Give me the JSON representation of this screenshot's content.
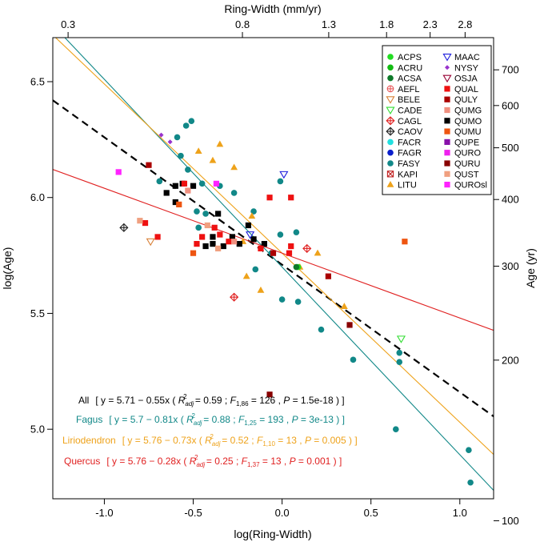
{
  "chart_data": {
    "type": "scatter",
    "xlabel": "log(Ring-Width)",
    "ylabel": "log(Age)",
    "top_axis_label": "Ring-Width (mm/yr)",
    "right_axis_label": "Age (yr)",
    "xlim": [
      -1.29,
      1.19
    ],
    "ylim": [
      4.7,
      6.69
    ],
    "x_ticks": [
      "-1.0",
      "-0.5",
      "0.0",
      "0.5",
      "1.0"
    ],
    "y_ticks": [
      "5.0",
      "5.5",
      "6.0",
      "6.5"
    ],
    "top_ticks": [
      "0.3",
      "0.8",
      "1.3",
      "1.8",
      "2.3",
      "2.8"
    ],
    "right_ticks": [
      "100",
      "200",
      "300",
      "400",
      "500",
      "600",
      "700"
    ],
    "legend_position": "top-right",
    "legend": [
      {
        "code": "ACPS",
        "color": "#22DD22",
        "marker": "circle"
      },
      {
        "code": "ACRU",
        "color": "#12BB12",
        "marker": "circle"
      },
      {
        "code": "ACSA",
        "color": "#0E7A2A",
        "marker": "circle"
      },
      {
        "code": "AEFL",
        "color": "#E8585A",
        "marker": "circle-plus"
      },
      {
        "code": "BELE",
        "color": "#D9823A",
        "marker": "triangle-down-open"
      },
      {
        "code": "CADE",
        "color": "#33DD33",
        "marker": "triangle-down-open"
      },
      {
        "code": "CAGL",
        "color": "#E02020",
        "marker": "diamond-plus"
      },
      {
        "code": "CAOV",
        "color": "#222222",
        "marker": "diamond-plus"
      },
      {
        "code": "FACR",
        "color": "#22E0E0",
        "marker": "circle"
      },
      {
        "code": "FAGR",
        "color": "#0A1ECC",
        "marker": "circle"
      },
      {
        "code": "FASY",
        "color": "#118888",
        "marker": "circle"
      },
      {
        "code": "KAPI",
        "color": "#C02020",
        "marker": "square-x"
      },
      {
        "code": "LITU",
        "color": "#EEA21A",
        "marker": "triangle"
      },
      {
        "code": "MAAC",
        "color": "#1C1CDD",
        "marker": "triangle-down-open"
      },
      {
        "code": "NYSY",
        "color": "#9933CC",
        "marker": "diamond"
      },
      {
        "code": "OSJA",
        "color": "#990033",
        "marker": "triangle-down-open"
      },
      {
        "code": "QUAL",
        "color": "#EE1111",
        "marker": "square"
      },
      {
        "code": "QULY",
        "color": "#AA0000",
        "marker": "square"
      },
      {
        "code": "QUMG",
        "color": "#F09080",
        "marker": "square"
      },
      {
        "code": "QUMO",
        "color": "#000000",
        "marker": "square"
      },
      {
        "code": "QUMU",
        "color": "#EE5511",
        "marker": "square"
      },
      {
        "code": "QUPE",
        "color": "#8811AA",
        "marker": "square"
      },
      {
        "code": "QURO",
        "color": "#EE22EE",
        "marker": "square"
      },
      {
        "code": "QURU",
        "color": "#880000",
        "marker": "square"
      },
      {
        "code": "QUST",
        "color": "#F0A080",
        "marker": "square"
      },
      {
        "code": "QUROsl",
        "color": "#FF22FF",
        "marker": "square"
      }
    ],
    "fits": [
      {
        "name": "All",
        "intercept": 5.71,
        "slope": -0.55,
        "color": "#000000",
        "dash": true,
        "eq": "y = 5.71 − 0.55x",
        "r2": "0.59",
        "df": "1,86",
        "f": "126",
        "p": "1.5e-18"
      },
      {
        "name": "Fagus",
        "intercept": 5.7,
        "slope": -0.81,
        "color": "#118888",
        "dash": false,
        "eq": "y = 5.7 − 0.81x",
        "r2": "0.88",
        "df": "1,25",
        "f": "193",
        "p": "3e-13"
      },
      {
        "name": "Liriodendron",
        "intercept": 5.76,
        "slope": -0.73,
        "color": "#EEA21A",
        "dash": false,
        "eq": "y = 5.76 − 0.73x",
        "r2": "0.52",
        "df": "1,10",
        "f": "13",
        "p": "0.005"
      },
      {
        "name": "Quercus",
        "intercept": 5.76,
        "slope": -0.28,
        "color": "#E02020",
        "dash": false,
        "eq": "y = 5.76 − 0.28x",
        "r2": "0.25",
        "df": "1,37",
        "f": "13",
        "p": "0.001"
      }
    ],
    "points": [
      {
        "sp": "FASY",
        "x": -0.51,
        "y": 6.33
      },
      {
        "sp": "FASY",
        "x": -0.54,
        "y": 6.31
      },
      {
        "sp": "FASY",
        "x": -0.59,
        "y": 6.26
      },
      {
        "sp": "FASY",
        "x": -0.57,
        "y": 6.18
      },
      {
        "sp": "FASY",
        "x": -0.53,
        "y": 6.12
      },
      {
        "sp": "FASY",
        "x": -0.45,
        "y": 6.06
      },
      {
        "sp": "FASY",
        "x": -0.35,
        "y": 6.05
      },
      {
        "sp": "FASY",
        "x": -0.27,
        "y": 6.02
      },
      {
        "sp": "FASY",
        "x": -0.48,
        "y": 5.94
      },
      {
        "sp": "FASY",
        "x": -0.43,
        "y": 5.93
      },
      {
        "sp": "FASY",
        "x": -0.47,
        "y": 5.87
      },
      {
        "sp": "FASY",
        "x": -0.16,
        "y": 5.94
      },
      {
        "sp": "FASY",
        "x": -0.01,
        "y": 6.07
      },
      {
        "sp": "FASY",
        "x": -0.69,
        "y": 6.07
      },
      {
        "sp": "FASY",
        "x": -0.01,
        "y": 5.84
      },
      {
        "sp": "FASY",
        "x": 0.08,
        "y": 5.85
      },
      {
        "sp": "FASY",
        "x": -0.06,
        "y": 5.76
      },
      {
        "sp": "FASY",
        "x": -0.15,
        "y": 5.69
      },
      {
        "sp": "FASY",
        "x": 0.0,
        "y": 5.56
      },
      {
        "sp": "FASY",
        "x": 0.09,
        "y": 5.55
      },
      {
        "sp": "FASY",
        "x": 0.22,
        "y": 5.43
      },
      {
        "sp": "FASY",
        "x": 0.4,
        "y": 5.3
      },
      {
        "sp": "FASY",
        "x": 0.66,
        "y": 5.33
      },
      {
        "sp": "FASY",
        "x": 0.66,
        "y": 5.29
      },
      {
        "sp": "FASY",
        "x": 0.64,
        "y": 5.0
      },
      {
        "sp": "FASY",
        "x": 1.05,
        "y": 4.91
      },
      {
        "sp": "FASY",
        "x": 1.06,
        "y": 4.77
      },
      {
        "sp": "LITU",
        "x": -0.47,
        "y": 6.2
      },
      {
        "sp": "LITU",
        "x": -0.35,
        "y": 6.23
      },
      {
        "sp": "LITU",
        "x": -0.39,
        "y": 6.16
      },
      {
        "sp": "LITU",
        "x": -0.27,
        "y": 6.13
      },
      {
        "sp": "LITU",
        "x": -0.17,
        "y": 5.92
      },
      {
        "sp": "LITU",
        "x": -0.2,
        "y": 5.66
      },
      {
        "sp": "LITU",
        "x": -0.12,
        "y": 5.6
      },
      {
        "sp": "LITU",
        "x": 0.1,
        "y": 5.7
      },
      {
        "sp": "LITU",
        "x": 0.2,
        "y": 5.76
      },
      {
        "sp": "LITU",
        "x": 0.35,
        "y": 5.53
      },
      {
        "sp": "LITU",
        "x": -0.22,
        "y": 5.81
      },
      {
        "sp": "QUMO",
        "x": -0.65,
        "y": 6.02
      },
      {
        "sp": "QUMO",
        "x": -0.6,
        "y": 6.05
      },
      {
        "sp": "QUMO",
        "x": -0.56,
        "y": 6.06
      },
      {
        "sp": "QUMO",
        "x": -0.5,
        "y": 6.05
      },
      {
        "sp": "QUMO",
        "x": -0.6,
        "y": 5.98
      },
      {
        "sp": "QUMO",
        "x": -0.36,
        "y": 5.93
      },
      {
        "sp": "QUMO",
        "x": -0.39,
        "y": 5.83
      },
      {
        "sp": "QUMO",
        "x": -0.39,
        "y": 5.8
      },
      {
        "sp": "QUMO",
        "x": -0.43,
        "y": 5.79
      },
      {
        "sp": "QUMO",
        "x": -0.33,
        "y": 5.79
      },
      {
        "sp": "QUMO",
        "x": -0.28,
        "y": 5.83
      },
      {
        "sp": "QUMO",
        "x": -0.24,
        "y": 5.8
      },
      {
        "sp": "QUMO",
        "x": -0.19,
        "y": 5.88
      },
      {
        "sp": "QUMO",
        "x": -0.16,
        "y": 5.82
      },
      {
        "sp": "QUMO",
        "x": -0.1,
        "y": 5.8
      },
      {
        "sp": "QUAL",
        "x": -0.77,
        "y": 5.89
      },
      {
        "sp": "QUAL",
        "x": -0.7,
        "y": 5.83
      },
      {
        "sp": "QUAL",
        "x": -0.55,
        "y": 6.06
      },
      {
        "sp": "QUAL",
        "x": -0.48,
        "y": 5.8
      },
      {
        "sp": "QUAL",
        "x": -0.45,
        "y": 5.83
      },
      {
        "sp": "QUAL",
        "x": -0.38,
        "y": 5.87
      },
      {
        "sp": "QUAL",
        "x": -0.35,
        "y": 5.84
      },
      {
        "sp": "QUAL",
        "x": -0.3,
        "y": 5.81
      },
      {
        "sp": "QUAL",
        "x": -0.07,
        "y": 6.0
      },
      {
        "sp": "QUAL",
        "x": 0.05,
        "y": 6.0
      },
      {
        "sp": "QUAL",
        "x": 0.05,
        "y": 5.79
      },
      {
        "sp": "QUAL",
        "x": 0.04,
        "y": 5.76
      },
      {
        "sp": "QUAL",
        "x": -0.12,
        "y": 5.78
      },
      {
        "sp": "QUMU",
        "x": -0.5,
        "y": 5.76
      },
      {
        "sp": "QUMU",
        "x": -0.58,
        "y": 5.97
      },
      {
        "sp": "QUMU",
        "x": 0.69,
        "y": 5.81
      },
      {
        "sp": "QULY",
        "x": -0.75,
        "y": 6.14
      },
      {
        "sp": "QULY",
        "x": -0.05,
        "y": 5.76
      },
      {
        "sp": "QULY",
        "x": 0.26,
        "y": 5.66
      },
      {
        "sp": "QURU",
        "x": -0.07,
        "y": 5.15
      },
      {
        "sp": "QURU",
        "x": 0.38,
        "y": 5.45
      },
      {
        "sp": "QUMG",
        "x": -0.53,
        "y": 6.03
      },
      {
        "sp": "QUMG",
        "x": -0.27,
        "y": 5.81
      },
      {
        "sp": "QUST",
        "x": -0.42,
        "y": 5.88
      },
      {
        "sp": "QUST",
        "x": -0.36,
        "y": 5.78
      },
      {
        "sp": "QUST",
        "x": -0.8,
        "y": 5.9
      },
      {
        "sp": "QUROsl",
        "x": -0.92,
        "y": 6.11
      },
      {
        "sp": "QUROsl",
        "x": -0.37,
        "y": 6.06
      },
      {
        "sp": "NYSY",
        "x": -0.68,
        "y": 6.27
      },
      {
        "sp": "NYSY",
        "x": -0.63,
        "y": 6.24
      },
      {
        "sp": "MAAC",
        "x": 0.01,
        "y": 6.1
      },
      {
        "sp": "MAAC",
        "x": -0.18,
        "y": 5.84
      },
      {
        "sp": "CADE",
        "x": 0.67,
        "y": 5.39
      },
      {
        "sp": "ACPS",
        "x": 0.09,
        "y": 5.7
      },
      {
        "sp": "ACSA",
        "x": 0.08,
        "y": 5.7
      },
      {
        "sp": "BELE",
        "x": -0.74,
        "y": 5.81
      },
      {
        "sp": "CAOV",
        "x": -0.89,
        "y": 5.87
      },
      {
        "sp": "CAGL",
        "x": -0.27,
        "y": 5.57
      },
      {
        "sp": "CAGL",
        "x": 0.14,
        "y": 5.78
      }
    ]
  }
}
